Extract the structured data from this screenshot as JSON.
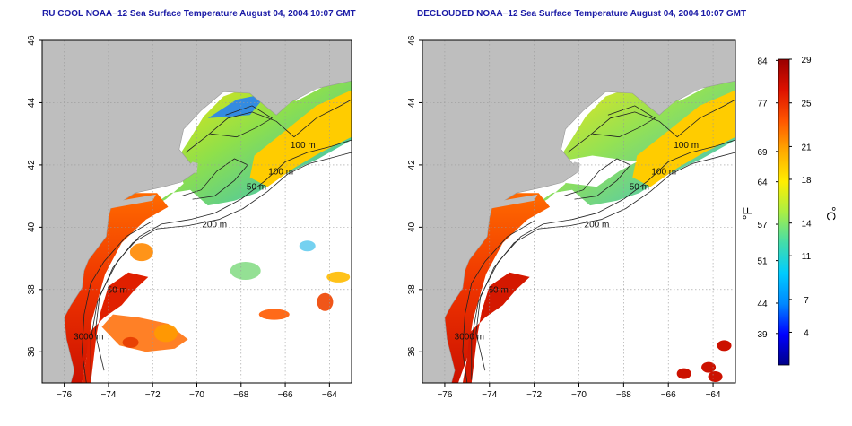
{
  "panels": [
    {
      "title": "RU COOL NOAA−12 Sea Surface Temperature August 04, 2004 10:07 GMT",
      "mode": "raw",
      "contour_labels": [
        "100 m",
        "100 m",
        "50 m",
        "200 m",
        "50 m",
        "3000 m"
      ]
    },
    {
      "title": "DECLOUDED NOAA−12 Sea Surface Temperature August 04, 2004 10:07 GMT",
      "mode": "declouded",
      "contour_labels": [
        "100 m",
        "100 m",
        "50 m",
        "200 m",
        "50 m",
        "3000 m"
      ]
    }
  ],
  "axes": {
    "x_ticks": [
      "−76",
      "−74",
      "−72",
      "−70",
      "−68",
      "−66",
      "−64"
    ],
    "y_ticks": [
      "36",
      "38",
      "40",
      "42",
      "44",
      "46"
    ],
    "lon_range": [
      -77,
      -63
    ],
    "lat_range": [
      35,
      46
    ],
    "grid": "dotted"
  },
  "colorbar": {
    "f_label": "°F",
    "c_label": "°C",
    "f_ticks": [
      "84",
      "77",
      "69",
      "64",
      "57",
      "51",
      "44",
      "39"
    ],
    "c_ticks": [
      "29",
      "25",
      "21",
      "18",
      "14",
      "11",
      "7",
      "4"
    ],
    "c_range": [
      1,
      29
    ],
    "colors": [
      "#000088",
      "#0000ff",
      "#0088ff",
      "#00ccff",
      "#44ddaa",
      "#aaee44",
      "#ffee00",
      "#ffaa00",
      "#ff5500",
      "#dd1100",
      "#990000"
    ]
  },
  "colors": {
    "land": "#bebebe",
    "ocean_no_data": "#ffffff",
    "title": "#1a1aa6",
    "contour": "#222222"
  }
}
